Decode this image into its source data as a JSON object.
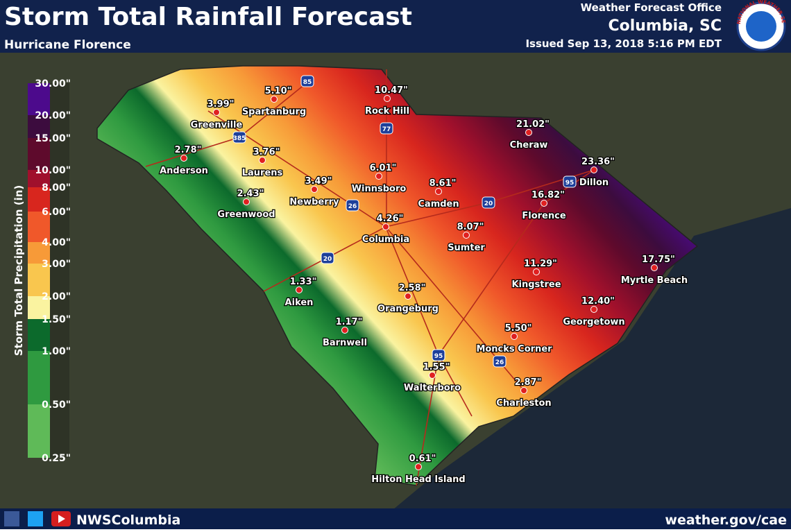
{
  "header": {
    "title": "Storm Total Rainfall Forecast",
    "subtitle": "Hurricane Florence",
    "office": "Weather Forecast Office",
    "location": "Columbia, SC",
    "issued": "Issued Sep 13, 2018 5:16 PM EDT",
    "logo_text": "NATIONAL WEATHER SERVICE"
  },
  "legend": {
    "title": "Storm Total Precipitation (in)",
    "labels": [
      "30.00\"",
      "20.00\"",
      "15.00\"",
      "10.00\"",
      "8.00\"",
      "6.00\"",
      "4.00\"",
      "3.00\"",
      "2.00\"",
      "1.50\"",
      "1.00\"",
      "0.50\"",
      "0.25\""
    ],
    "colors": [
      "#4c0a8c",
      "#3c0c3e",
      "#5e0a2c",
      "#a0102c",
      "#d8261e",
      "#f0582a",
      "#f79a38",
      "#f9c64e",
      "#faf3a0",
      "#0c6a2c",
      "#2f9a40",
      "#5fba58"
    ]
  },
  "cities": [
    {
      "name": "Spartanburg",
      "value": "5.10\""
    },
    {
      "name": "Greenville",
      "value": "3.99\""
    },
    {
      "name": "Rock Hill",
      "value": "10.47\""
    },
    {
      "name": "Anderson",
      "value": "2.78\""
    },
    {
      "name": "Laurens",
      "value": "3.76\""
    },
    {
      "name": "Cheraw",
      "value": "21.02\""
    },
    {
      "name": "Dillon",
      "value": "23.36\""
    },
    {
      "name": "Winnsboro",
      "value": "6.01\""
    },
    {
      "name": "Greenwood",
      "value": "2.43\""
    },
    {
      "name": "Newberry",
      "value": "3.49\""
    },
    {
      "name": "Camden",
      "value": "8.61\""
    },
    {
      "name": "Florence",
      "value": "16.82\""
    },
    {
      "name": "Columbia",
      "value": "4.26\""
    },
    {
      "name": "Sumter",
      "value": "8.07\""
    },
    {
      "name": "Myrtle Beach",
      "value": "17.75\""
    },
    {
      "name": "Kingstree",
      "value": "11.29\""
    },
    {
      "name": "Aiken",
      "value": "1.33\""
    },
    {
      "name": "Orangeburg",
      "value": "2.58\""
    },
    {
      "name": "Georgetown",
      "value": "12.40\""
    },
    {
      "name": "Barnwell",
      "value": "1.17\""
    },
    {
      "name": "Moncks Corner",
      "value": "5.50\""
    },
    {
      "name": "Walterboro",
      "value": "1.55\""
    },
    {
      "name": "Charleston",
      "value": "2.87\""
    },
    {
      "name": "Hilton Head Island",
      "value": "0.61\""
    }
  ],
  "highways": [
    "85",
    "77",
    "385",
    "26",
    "20",
    "95",
    "20",
    "95",
    "26"
  ],
  "footer": {
    "handle": "NWSColumbia",
    "url": "weather.gov/cae"
  }
}
